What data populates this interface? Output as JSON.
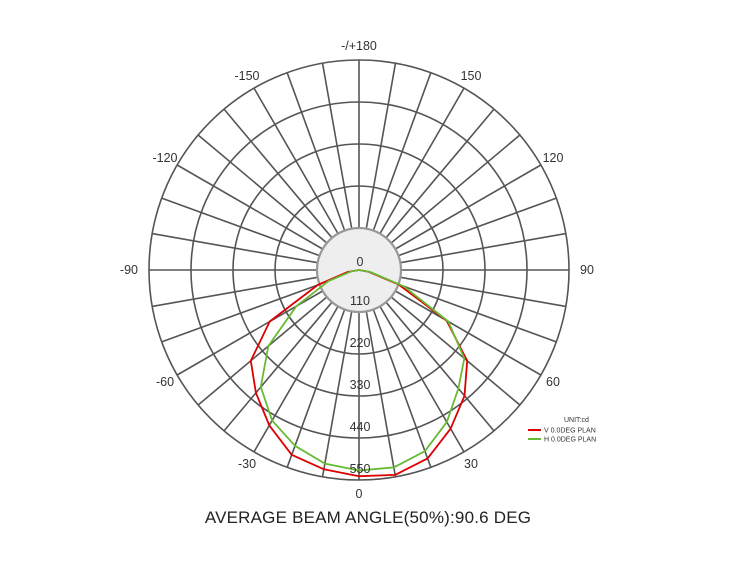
{
  "chart_data": {
    "type": "polar-line",
    "unit_label": "UNIT:cd",
    "angle_labels": [
      {
        "angle": 180,
        "text": "-/+180"
      },
      {
        "angle": 150,
        "text": "150"
      },
      {
        "angle": 120,
        "text": "120"
      },
      {
        "angle": 90,
        "text": "90"
      },
      {
        "angle": 60,
        "text": "60"
      },
      {
        "angle": 30,
        "text": "30"
      },
      {
        "angle": 0,
        "text": "0"
      },
      {
        "angle": -30,
        "text": "-30"
      },
      {
        "angle": -60,
        "text": "-60"
      },
      {
        "angle": -90,
        "text": "-90"
      },
      {
        "angle": -120,
        "text": "-120"
      },
      {
        "angle": -150,
        "text": "-150"
      }
    ],
    "radial_ticks": [
      0,
      110,
      220,
      330,
      440,
      550
    ],
    "rlim": [
      0,
      550
    ],
    "angle_step_deg": 10,
    "series": [
      {
        "name": "V 0.0DEG PLAN",
        "color": "#dd0000",
        "points": [
          [
            -90,
            0
          ],
          [
            -80,
            30
          ],
          [
            -70,
            115
          ],
          [
            -60,
            270
          ],
          [
            -50,
            370
          ],
          [
            -40,
            420
          ],
          [
            -30,
            470
          ],
          [
            -20,
            515
          ],
          [
            -10,
            530
          ],
          [
            0,
            540
          ],
          [
            10,
            545
          ],
          [
            20,
            525
          ],
          [
            30,
            480
          ],
          [
            40,
            430
          ],
          [
            50,
            370
          ],
          [
            60,
            265
          ],
          [
            70,
            110
          ],
          [
            80,
            25
          ],
          [
            90,
            0
          ]
        ]
      },
      {
        "name": "H 0.0DEG PLAN",
        "color": "#66bb33",
        "points": [
          [
            -90,
            0
          ],
          [
            -80,
            20
          ],
          [
            -70,
            85
          ],
          [
            -60,
            190
          ],
          [
            -50,
            310
          ],
          [
            -40,
            400
          ],
          [
            -30,
            455
          ],
          [
            -20,
            490
          ],
          [
            -10,
            515
          ],
          [
            0,
            525
          ],
          [
            10,
            525
          ],
          [
            20,
            505
          ],
          [
            30,
            460
          ],
          [
            40,
            405
          ],
          [
            50,
            360
          ],
          [
            60,
            270
          ],
          [
            70,
            125
          ],
          [
            80,
            30
          ],
          [
            90,
            0
          ]
        ]
      }
    ]
  },
  "caption": "AVERAGE BEAM ANGLE(50%):90.6 DEG"
}
